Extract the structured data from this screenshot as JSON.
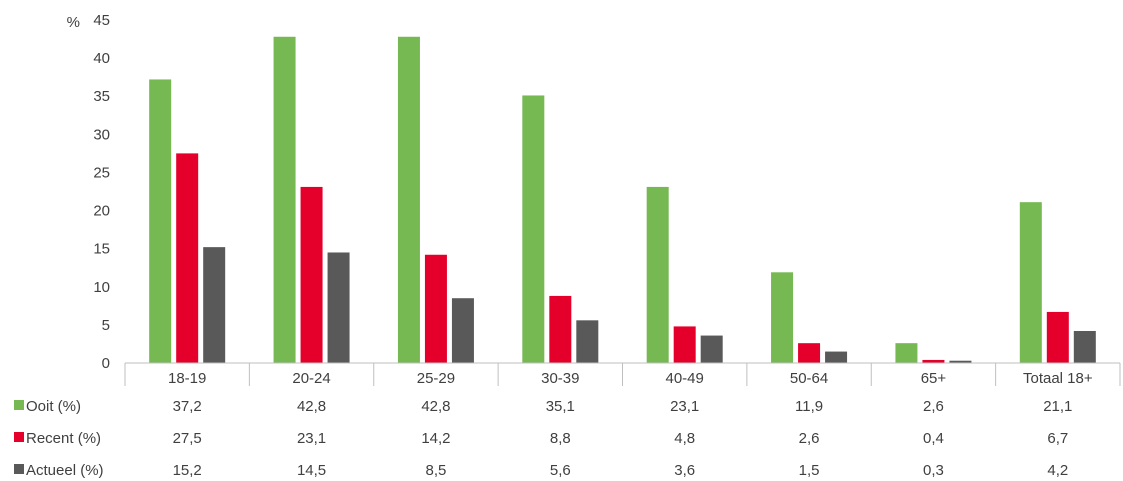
{
  "chart_data": {
    "type": "bar",
    "y_unit": "%",
    "categories": [
      "18-19",
      "20-24",
      "25-29",
      "30-39",
      "40-49",
      "50-64",
      "65+",
      "Totaal 18+"
    ],
    "series": [
      {
        "name": "Ooit (%)",
        "color": "#76b852",
        "values": [
          37.2,
          42.8,
          42.8,
          35.1,
          23.1,
          11.9,
          2.6,
          21.1
        ]
      },
      {
        "name": "Recent (%)",
        "color": "#e4002b",
        "values": [
          27.5,
          23.1,
          14.2,
          8.8,
          4.8,
          2.6,
          0.4,
          6.7
        ]
      },
      {
        "name": "Actueel (%)",
        "color": "#595959",
        "values": [
          15.2,
          14.5,
          8.5,
          5.6,
          3.6,
          1.5,
          0.3,
          4.2
        ]
      }
    ],
    "data_table": [
      [
        "37,2",
        "42,8",
        "42,8",
        "35,1",
        "23,1",
        "11,9",
        "2,6",
        "21,1"
      ],
      [
        "27,5",
        "23,1",
        "14,2",
        "8,8",
        "4,8",
        "2,6",
        "0,4",
        "6,7"
      ],
      [
        "15,2",
        "14,5",
        "8,5",
        "5,6",
        "3,6",
        "1,5",
        "0,3",
        "4,2"
      ]
    ],
    "ylim": [
      0,
      45
    ],
    "yticks": [
      0,
      5,
      10,
      15,
      20,
      25,
      30,
      35,
      40,
      45
    ],
    "grid": false,
    "legend": "data table below chart"
  }
}
